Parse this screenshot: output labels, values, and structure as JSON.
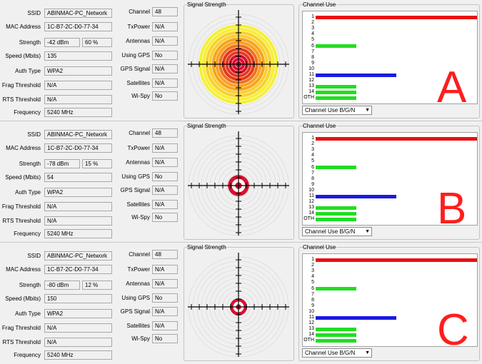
{
  "labels": {
    "ssid": "SSID",
    "mac": "MAC Address",
    "strength": "Strength",
    "speed": "Speed (Mbits)",
    "auth": "Auth Type",
    "frag": "Frag Threshold",
    "rts": "RTS Threshold",
    "frequency": "Frequency",
    "channel": "Channel",
    "txpower": "TxPower",
    "antennas": "Antennas",
    "using_gps": "Using GPS",
    "gps_signal": "GPS Signal",
    "satellites": "Satellites",
    "wispy": "Wi-Spy",
    "signal_strength": "Signal Strength",
    "channel_use": "Channel Use"
  },
  "channel_labels": [
    "1",
    "2",
    "3",
    "4",
    "5",
    "6",
    "7",
    "8",
    "9",
    "10",
    "11",
    "12",
    "13",
    "14",
    "OTH"
  ],
  "colors": {
    "red": "#e81010",
    "green": "#22dd22",
    "blue": "#1a1ae0"
  },
  "panels": [
    {
      "letter": "A",
      "ssid": "ABINMAC-PC_Network",
      "mac": "1C-B7-2C-D0-77-34",
      "strength_dbm": "-42 dBm",
      "strength_pct": "60 %",
      "speed": "135",
      "auth": "WPA2",
      "frag": "N/A",
      "rts": "N/A",
      "frequency": "5240 MHz",
      "channel": "48",
      "txpower": "N/A",
      "antennas": "N/A",
      "using_gps": "No",
      "gps_signal": "N/A",
      "satellites": "N/A",
      "wispy": "No",
      "signal_pct": 60,
      "channel_use": [
        {
          "ch": "1",
          "pct": 100,
          "color": "red"
        },
        {
          "ch": "6",
          "pct": 25,
          "color": "green"
        },
        {
          "ch": "11",
          "pct": 50,
          "color": "blue"
        },
        {
          "ch": "13",
          "pct": 25,
          "color": "green"
        },
        {
          "ch": "14",
          "pct": 25,
          "color": "green"
        },
        {
          "ch": "OTH",
          "pct": 25,
          "color": "green"
        }
      ],
      "dropdown": "Channel Use B/G/N"
    },
    {
      "letter": "B",
      "ssid": "ABINMAC-PC_Network",
      "mac": "1C-B7-2C-D0-77-34",
      "strength_dbm": "-78 dBm",
      "strength_pct": "15 %",
      "speed": "54",
      "auth": "WPA2",
      "frag": "N/A",
      "rts": "N/A",
      "frequency": "5240 MHz",
      "channel": "48",
      "txpower": "N/A",
      "antennas": "N/A",
      "using_gps": "No",
      "gps_signal": "N/A",
      "satellites": "N/A",
      "wispy": "No",
      "signal_pct": 15,
      "channel_use": [
        {
          "ch": "1",
          "pct": 100,
          "color": "red"
        },
        {
          "ch": "6",
          "pct": 25,
          "color": "green"
        },
        {
          "ch": "11",
          "pct": 50,
          "color": "blue"
        },
        {
          "ch": "13",
          "pct": 25,
          "color": "green"
        },
        {
          "ch": "14",
          "pct": 25,
          "color": "green"
        },
        {
          "ch": "OTH",
          "pct": 25,
          "color": "green"
        }
      ],
      "dropdown": "Channel Use B/G/N"
    },
    {
      "letter": "C",
      "ssid": "ABINMAC-PC_Network",
      "mac": "1C-B7-2C-D0-77-34",
      "strength_dbm": "-80 dBm",
      "strength_pct": "12 %",
      "speed": "150",
      "auth": "WPA2",
      "frag": "N/A",
      "rts": "N/A",
      "frequency": "5240 MHz",
      "channel": "48",
      "txpower": "N/A",
      "antennas": "N/A",
      "using_gps": "No",
      "gps_signal": "N/A",
      "satellites": "N/A",
      "wispy": "No",
      "signal_pct": 12,
      "channel_use": [
        {
          "ch": "1",
          "pct": 100,
          "color": "red"
        },
        {
          "ch": "6",
          "pct": 25,
          "color": "green"
        },
        {
          "ch": "11",
          "pct": 50,
          "color": "blue"
        },
        {
          "ch": "13",
          "pct": 25,
          "color": "green"
        },
        {
          "ch": "14",
          "pct": 25,
          "color": "green"
        },
        {
          "ch": "OTH",
          "pct": 25,
          "color": "green"
        }
      ],
      "dropdown": "Channel Use B/G/N"
    }
  ]
}
